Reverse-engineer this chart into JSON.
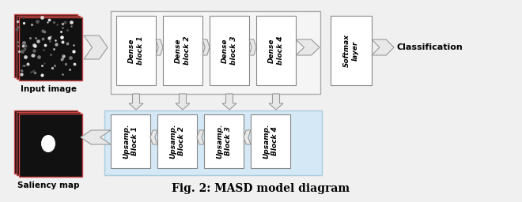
{
  "title": "Fig. 2: MASD model diagram",
  "title_fontsize": 10,
  "bg_color": "#f0f0f0",
  "dense_blocks": [
    "Dense\nblock 1",
    "Dense\nblock 2",
    "Dense\nblock 3",
    "Dense\nblock 4"
  ],
  "upsamp_blocks": [
    "Upsamp.\nBlock 1",
    "Upsamp.\nBlock 2",
    "Upsamp.\nBlock 3",
    "Upsamp.\nBlock 4"
  ],
  "softmax_label": "Softmax\nlayer",
  "classification_label": "Classification",
  "input_label": "Input image",
  "saliency_label": "Saliency map",
  "arrow_face": "#e8e8e8",
  "arrow_edge": "#999999",
  "box_face": "#ffffff",
  "box_edge": "#888888",
  "dense_container_face": "#f5f5f5",
  "upsamp_container_face": "#d4e8f5",
  "upsamp_container_edge": "#aaccdd"
}
